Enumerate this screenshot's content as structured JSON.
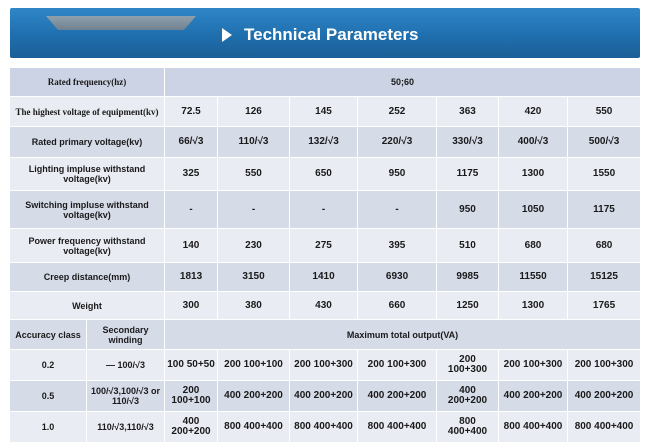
{
  "title": "Technical Parameters",
  "rated_frequency": {
    "label": "Rated frequency(hz)",
    "value": "50;60"
  },
  "params": [
    {
      "label": "The highest voltage of equipment(kv)",
      "values": [
        "72.5",
        "126",
        "145",
        "252",
        "363",
        "420",
        "550"
      ]
    },
    {
      "label": "Rated primary voltage(kv)",
      "values": [
        "66/√3",
        "110/√3",
        "132/√3",
        "220/√3",
        "330/√3",
        "400/√3",
        "500/√3"
      ]
    },
    {
      "label": "Lighting impluse withstand voltage(kv)",
      "values": [
        "325",
        "550",
        "650",
        "950",
        "1175",
        "1300",
        "1550"
      ]
    },
    {
      "label": "Switching impluse withstand voltage(kv)",
      "values": [
        "-",
        "-",
        "-",
        "-",
        "950",
        "1050",
        "1175"
      ]
    },
    {
      "label": "Power frequency withstand voltage(kv)",
      "values": [
        "140",
        "230",
        "275",
        "395",
        "510",
        "680",
        "680"
      ]
    },
    {
      "label": "Creep distance(mm)",
      "values": [
        "1813",
        "3150",
        "1410",
        "6930",
        "9985",
        "11550",
        "15125"
      ]
    },
    {
      "label": "Weight",
      "values": [
        "300",
        "380",
        "430",
        "660",
        "1250",
        "1300",
        "1765"
      ]
    }
  ],
  "output_header": {
    "accuracy_label": "Accuracy class",
    "winding_label": "Secondary winding",
    "output_label": "Maximum total output(VA)"
  },
  "accuracy_rows": [
    {
      "class": "0.2",
      "winding": "— 100/√3",
      "values": [
        "100 50+50",
        "200 100+100",
        "200 100+300",
        "200 100+300",
        "200 100+300",
        "200 100+300",
        "200 100+300"
      ]
    },
    {
      "class": "0.5",
      "winding": "100/√3,100/√3 or 110/√3",
      "values": [
        "200 100+100",
        "400 200+200",
        "400 200+200",
        "400 200+200",
        "400 200+200",
        "400 200+200",
        "400 200+200"
      ]
    },
    {
      "class": "1.0",
      "winding": "110/√3,110/√3",
      "values": [
        "400 200+200",
        "800 400+400",
        "800 400+400",
        "800 400+400",
        "800 400+400",
        "800 400+400",
        "800 400+400"
      ]
    }
  ]
}
